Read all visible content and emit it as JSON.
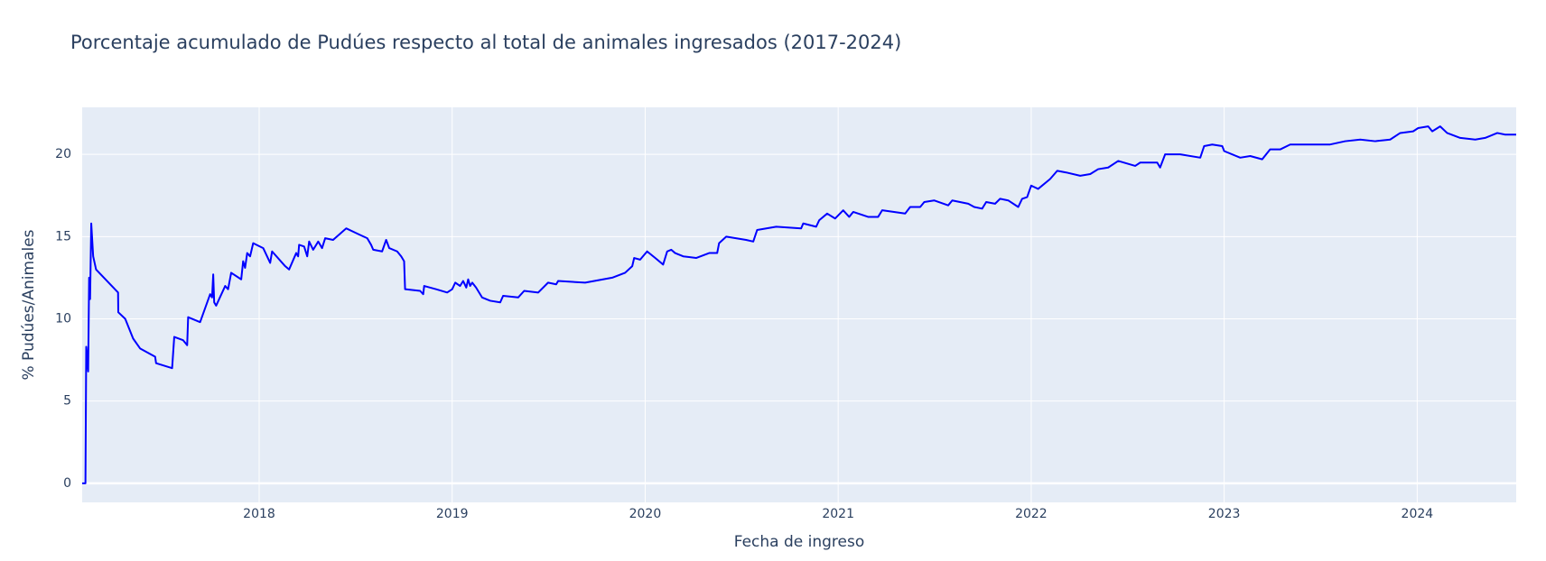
{
  "chart_data": {
    "type": "line",
    "title": "Porcentaje acumulado de Pudúes respecto al total de animales ingresados (2017-2024)",
    "x_label": "Fecha de ingreso",
    "y_label": "% Pudúes/Animales",
    "color": "#0000ff",
    "grid": true,
    "xlim": [
      2017.083,
      2024.513
    ],
    "ylim": [
      -1.16,
      22.86
    ],
    "xticks": [
      2018,
      2019,
      2020,
      2021,
      2022,
      2023,
      2024
    ],
    "yticks": [
      0,
      5,
      10,
      15,
      20
    ],
    "x": [
      2017.083,
      2017.1,
      2017.104,
      2017.114,
      2017.119,
      2017.124,
      2017.13,
      2017.14,
      2017.155,
      2017.269,
      2017.27,
      2017.306,
      2017.347,
      2017.383,
      2017.461,
      2017.466,
      2017.549,
      2017.56,
      2017.606,
      2017.627,
      2017.632,
      2017.694,
      2017.746,
      2017.756,
      2017.762,
      2017.767,
      2017.777,
      2017.824,
      2017.839,
      2017.855,
      2017.907,
      2017.917,
      2017.927,
      2017.938,
      2017.953,
      2017.969,
      2018.021,
      2018.041,
      2018.057,
      2018.067,
      2018.135,
      2018.155,
      2018.192,
      2018.202,
      2018.207,
      2018.233,
      2018.249,
      2018.259,
      2018.28,
      2018.306,
      2018.326,
      2018.342,
      2018.383,
      2018.451,
      2018.523,
      2018.56,
      2018.58,
      2018.591,
      2018.637,
      2018.658,
      2018.674,
      2018.715,
      2018.736,
      2018.751,
      2018.756,
      2018.834,
      2018.85,
      2018.855,
      2018.917,
      2018.974,
      2019.0,
      2019.016,
      2019.041,
      2019.057,
      2019.073,
      2019.083,
      2019.093,
      2019.104,
      2019.124,
      2019.155,
      2019.197,
      2019.249,
      2019.264,
      2019.342,
      2019.373,
      2019.446,
      2019.497,
      2019.539,
      2019.549,
      2019.689,
      2019.829,
      2019.896,
      2019.933,
      2019.943,
      2019.974,
      2020.01,
      2020.052,
      2020.093,
      2020.114,
      2020.135,
      2020.155,
      2020.197,
      2020.264,
      2020.332,
      2020.373,
      2020.383,
      2020.42,
      2020.523,
      2020.56,
      2020.58,
      2020.679,
      2020.808,
      2020.819,
      2020.886,
      2020.902,
      2020.943,
      2020.984,
      2021.026,
      2021.057,
      2021.078,
      2021.155,
      2021.207,
      2021.228,
      2021.347,
      2021.373,
      2021.425,
      2021.446,
      2021.497,
      2021.57,
      2021.591,
      2021.674,
      2021.705,
      2021.746,
      2021.767,
      2021.813,
      2021.839,
      2021.881,
      2021.933,
      2021.953,
      2021.979,
      2022.0,
      2022.036,
      2022.098,
      2022.135,
      2022.181,
      2022.254,
      2022.306,
      2022.347,
      2022.399,
      2022.451,
      2022.539,
      2022.565,
      2022.653,
      2022.668,
      2022.694,
      2022.772,
      2022.876,
      2022.896,
      2022.938,
      2022.99,
      2023.0,
      2023.083,
      2023.135,
      2023.197,
      2023.238,
      2023.29,
      2023.342,
      2023.446,
      2023.549,
      2023.627,
      2023.705,
      2023.782,
      2023.86,
      2023.912,
      2023.979,
      2024.005,
      2024.057,
      2024.078,
      2024.119,
      2024.155,
      2024.223,
      2024.301,
      2024.352,
      2024.415,
      2024.456,
      2024.513
    ],
    "values": [
      0,
      0,
      8.3,
      6.8,
      12.5,
      11.2,
      15.8,
      13.8,
      13.0,
      11.6,
      10.4,
      10.0,
      8.8,
      8.2,
      7.7,
      7.3,
      7.0,
      8.9,
      8.7,
      8.4,
      10.1,
      9.8,
      11.5,
      11.3,
      12.7,
      11.0,
      10.8,
      12.0,
      11.8,
      12.8,
      12.4,
      13.5,
      13.1,
      14.0,
      13.8,
      14.6,
      14.3,
      13.8,
      13.4,
      14.1,
      13.2,
      13.0,
      14.0,
      13.8,
      14.5,
      14.4,
      13.8,
      14.7,
      14.2,
      14.7,
      14.3,
      14.9,
      14.8,
      15.5,
      15.1,
      14.9,
      14.5,
      14.2,
      14.1,
      14.8,
      14.3,
      14.1,
      13.8,
      13.5,
      11.8,
      11.7,
      11.5,
      12.0,
      11.8,
      11.6,
      11.8,
      12.2,
      12.0,
      12.3,
      11.9,
      12.4,
      12.0,
      12.2,
      11.9,
      11.3,
      11.1,
      11.0,
      11.4,
      11.3,
      11.7,
      11.6,
      12.2,
      12.1,
      12.3,
      12.2,
      12.5,
      12.8,
      13.2,
      13.7,
      13.6,
      14.1,
      13.7,
      13.3,
      14.1,
      14.2,
      14.0,
      13.8,
      13.7,
      14.0,
      14.0,
      14.6,
      15.0,
      14.8,
      14.7,
      15.4,
      15.6,
      15.5,
      15.8,
      15.6,
      16.0,
      16.4,
      16.1,
      16.6,
      16.2,
      16.5,
      16.2,
      16.2,
      16.6,
      16.4,
      16.8,
      16.8,
      17.1,
      17.2,
      16.9,
      17.2,
      17.0,
      16.8,
      16.7,
      17.1,
      17.0,
      17.3,
      17.2,
      16.8,
      17.3,
      17.4,
      18.1,
      17.9,
      18.5,
      19.0,
      18.9,
      18.7,
      18.8,
      19.1,
      19.2,
      19.6,
      19.3,
      19.5,
      19.5,
      19.2,
      20.0,
      20.0,
      19.8,
      20.5,
      20.6,
      20.5,
      20.2,
      19.8,
      19.9,
      19.7,
      20.3,
      20.3,
      20.6,
      20.6,
      20.6,
      20.8,
      20.9,
      20.8,
      20.9,
      21.3,
      21.4,
      21.6,
      21.7,
      21.4,
      21.7,
      21.3,
      21.0,
      20.9,
      21.0,
      21.3,
      21.2,
      21.2
    ]
  }
}
